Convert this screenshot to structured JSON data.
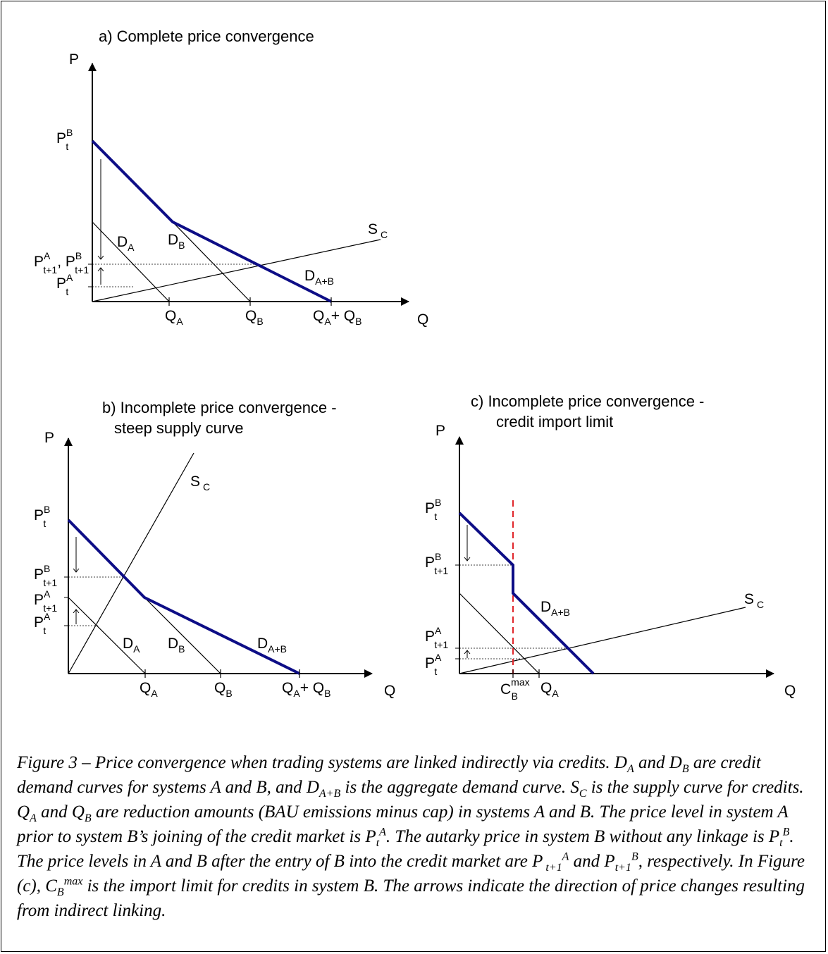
{
  "panel_a": {
    "title": "a) Complete price convergence",
    "axis_p": "P",
    "axis_q": "Q",
    "p_tB": "P",
    "p_tB_sup": "B",
    "p_tB_sub": "t",
    "p_t1": "P",
    "p_t1_sup": "A",
    "p_t1_sub": "t+1",
    "p_t1_comma": ", P",
    "p_t1b_sup": "B",
    "p_t1b_sub": "t+1",
    "p_tA": "P",
    "p_tA_sup": "A",
    "p_tA_sub": "t",
    "d_a": "D",
    "d_a_sub": "A",
    "d_b": "D",
    "d_b_sub": "B",
    "d_ab": "D",
    "d_ab_sub": "A+B",
    "s_c": "S",
    "s_c_sub": "C",
    "q_a": "Q",
    "q_a_sub": "A",
    "q_b": "Q",
    "q_b_sub": "B",
    "q_ab1": "Q",
    "q_ab1_sub": "A",
    "q_ab_plus": "+ Q",
    "q_ab2_sub": "B"
  },
  "panel_b": {
    "title_line1": "b) Incomplete price convergence -",
    "title_line2": "steep supply curve",
    "axis_p": "P",
    "axis_q": "Q",
    "p_tB": "P",
    "p_tB_sup": "B",
    "p_tB_sub": "t",
    "p_t1B": "P",
    "p_t1B_sup": "B",
    "p_t1B_sub": "t+1",
    "p_t1A": "P",
    "p_t1A_sup": "A",
    "p_t1A_sub": "t+1",
    "p_tA": "P",
    "p_tA_sup": "A",
    "p_tA_sub": "t",
    "d_a": "D",
    "d_a_sub": "A",
    "d_b": "D",
    "d_b_sub": "B",
    "d_ab": "D",
    "d_ab_sub": "A+B",
    "s_c": "S",
    "s_c_sub": "C",
    "q_a": "Q",
    "q_a_sub": "A",
    "q_b": "Q",
    "q_b_sub": "B",
    "q_ab1": "Q",
    "q_ab1_sub": "A",
    "q_ab_plus": "+ Q",
    "q_ab2_sub": "B"
  },
  "panel_c": {
    "title_line1": "c) Incomplete price convergence -",
    "title_line2": "credit import limit",
    "axis_p": "P",
    "axis_q": "Q",
    "p_tB": "P",
    "p_tB_sup": "B",
    "p_tB_sub": "t",
    "p_t1B": "P",
    "p_t1B_sup": "B",
    "p_t1B_sub": "t+1",
    "p_t1A": "P",
    "p_t1A_sup": "A",
    "p_t1A_sub": "t+1",
    "p_tA": "P",
    "p_tA_sup": "A",
    "p_tA_sub": "t",
    "d_ab": "D",
    "d_ab_sub": "A+B",
    "s_c": "S",
    "s_c_sub": "C",
    "c_b": "C",
    "c_b_sup": "max",
    "c_b_sub": "B",
    "q_a": "Q",
    "q_a_sub": "A"
  },
  "colors": {
    "aggregate_demand": "#0d0d86",
    "import_limit": "#e0252a",
    "line": "#000000"
  },
  "caption": {
    "p1": "Figure 3 – Price convergence when trading systems are linked indirectly via credits. D",
    "s1": "A",
    "p2": " and D",
    "s2": "B",
    "p3": " are credit demand curves for systems A and B, and D",
    "s3": "A+B",
    "p4": " is the aggregate demand curve. S",
    "s4": "C",
    "p5": " is the supply curve for credits. Q",
    "s5": "A",
    "p6": " and Q",
    "s6": "B",
    "p7": " are reduction amounts (BAU emissions minus cap) in systems A and B. The price level in system A prior to system B’s joining of the credit market is P",
    "s7sub": "t",
    "s7sup": "A",
    "p8": ". The autarky price in system B without any linkage is P",
    "s8sub": "t",
    "s8sup": "B",
    "p9": ". The price levels in A and B after the entry of B into the credit market are P",
    "s9sub": " t+1",
    "s9sup": "A",
    "p10": " and P",
    "s10sub": "t+1",
    "s10sup": "B",
    "p11": ", respectively. In Figure (c), C",
    "s11sub": "B",
    "s11sup": "max",
    "p12": " is the import limit for credits in system B. The arrows indicate the direction of price changes resulting from indirect linking."
  }
}
